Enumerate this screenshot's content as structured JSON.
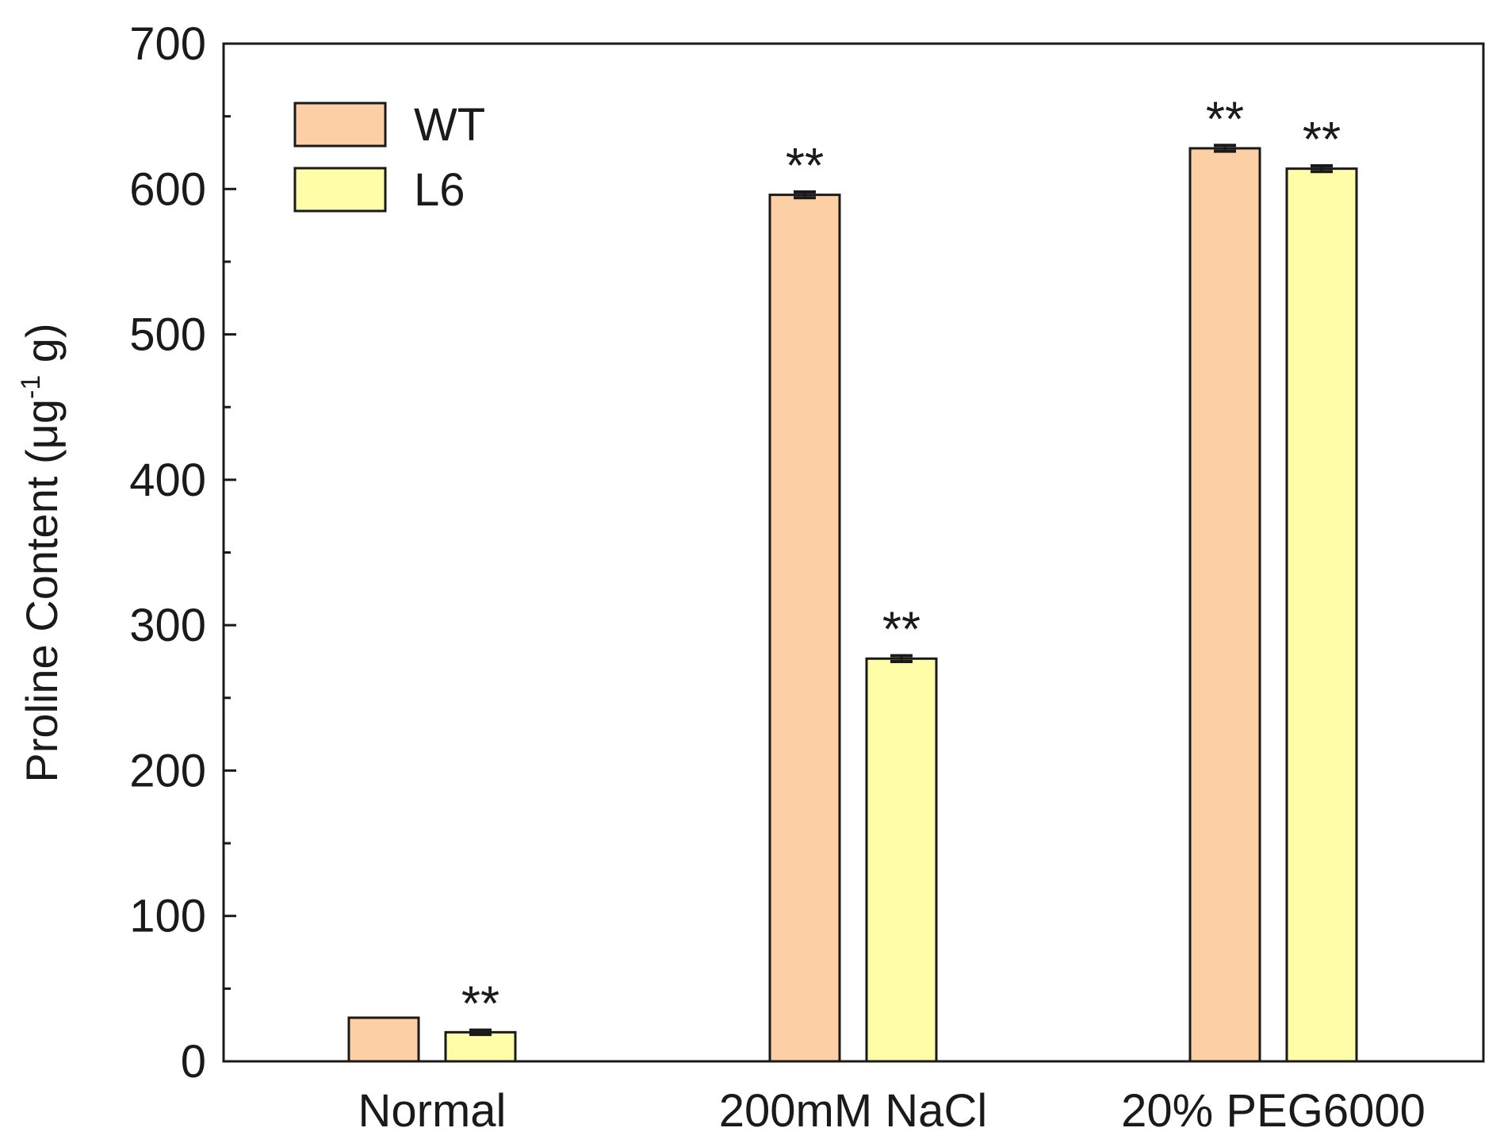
{
  "chart_data": {
    "type": "bar",
    "ylabel": "Proline Content (μg",
    "ylabel_superscript": "-1",
    "ylabel_suffix": " g)",
    "xlabel": "",
    "ylim": [
      0,
      700
    ],
    "yticks": [
      0,
      100,
      200,
      300,
      400,
      500,
      600,
      700
    ],
    "minor_tick_step": 50,
    "categories": [
      "Normal",
      "200mM NaCl",
      "20% PEG6000"
    ],
    "series": [
      {
        "name": "WT",
        "color": "#FDCFA4",
        "values": [
          30,
          596,
          628
        ],
        "errors": [
          0,
          2,
          2
        ],
        "significance": [
          "",
          "**",
          "**"
        ]
      },
      {
        "name": "L6",
        "color": "#FFFDA8",
        "values": [
          20,
          277,
          614
        ],
        "errors": [
          1.5,
          2,
          2
        ],
        "significance": [
          "**",
          "**",
          "**"
        ]
      }
    ],
    "legend_position": "top-left",
    "grid": false
  }
}
